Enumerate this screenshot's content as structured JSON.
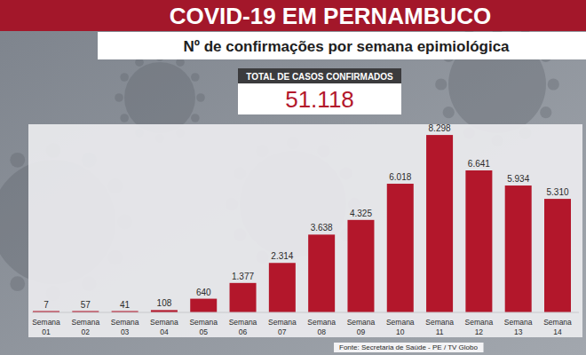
{
  "chart_data": {
    "type": "bar",
    "title": "COVID-19 EM PERNAMBUCO",
    "subtitle": "Nº de confirmações por semana epimiológica",
    "annotations": [
      "TOTAL DE CASOS CONFIRMADOS",
      "51.118",
      "Fonte: Secretaria de Saúde - PE / TV Globo"
    ],
    "categories": [
      "Semana 01",
      "Semana 02",
      "Semana 03",
      "Semana 04",
      "Semana 05",
      "Semana 06",
      "Semana 07",
      "Semana 08",
      "Semana 09",
      "Semana 10",
      "Semana 11",
      "Semana 12",
      "Semana 13",
      "Semana 14"
    ],
    "values": [
      7,
      57,
      41,
      108,
      640,
      1377,
      2314,
      3638,
      4325,
      6018,
      8298,
      6641,
      5934,
      5310
    ],
    "value_labels": [
      "7",
      "57",
      "41",
      "108",
      "640",
      "1.377",
      "2.314",
      "3.638",
      "4.325",
      "6.018",
      "8.298",
      "6.641",
      "5.934",
      "5.310"
    ],
    "color": "#b3172b",
    "ylim": [
      0,
      8800
    ],
    "data_labels": true,
    "tick_labels": "x",
    "grid": false
  }
}
